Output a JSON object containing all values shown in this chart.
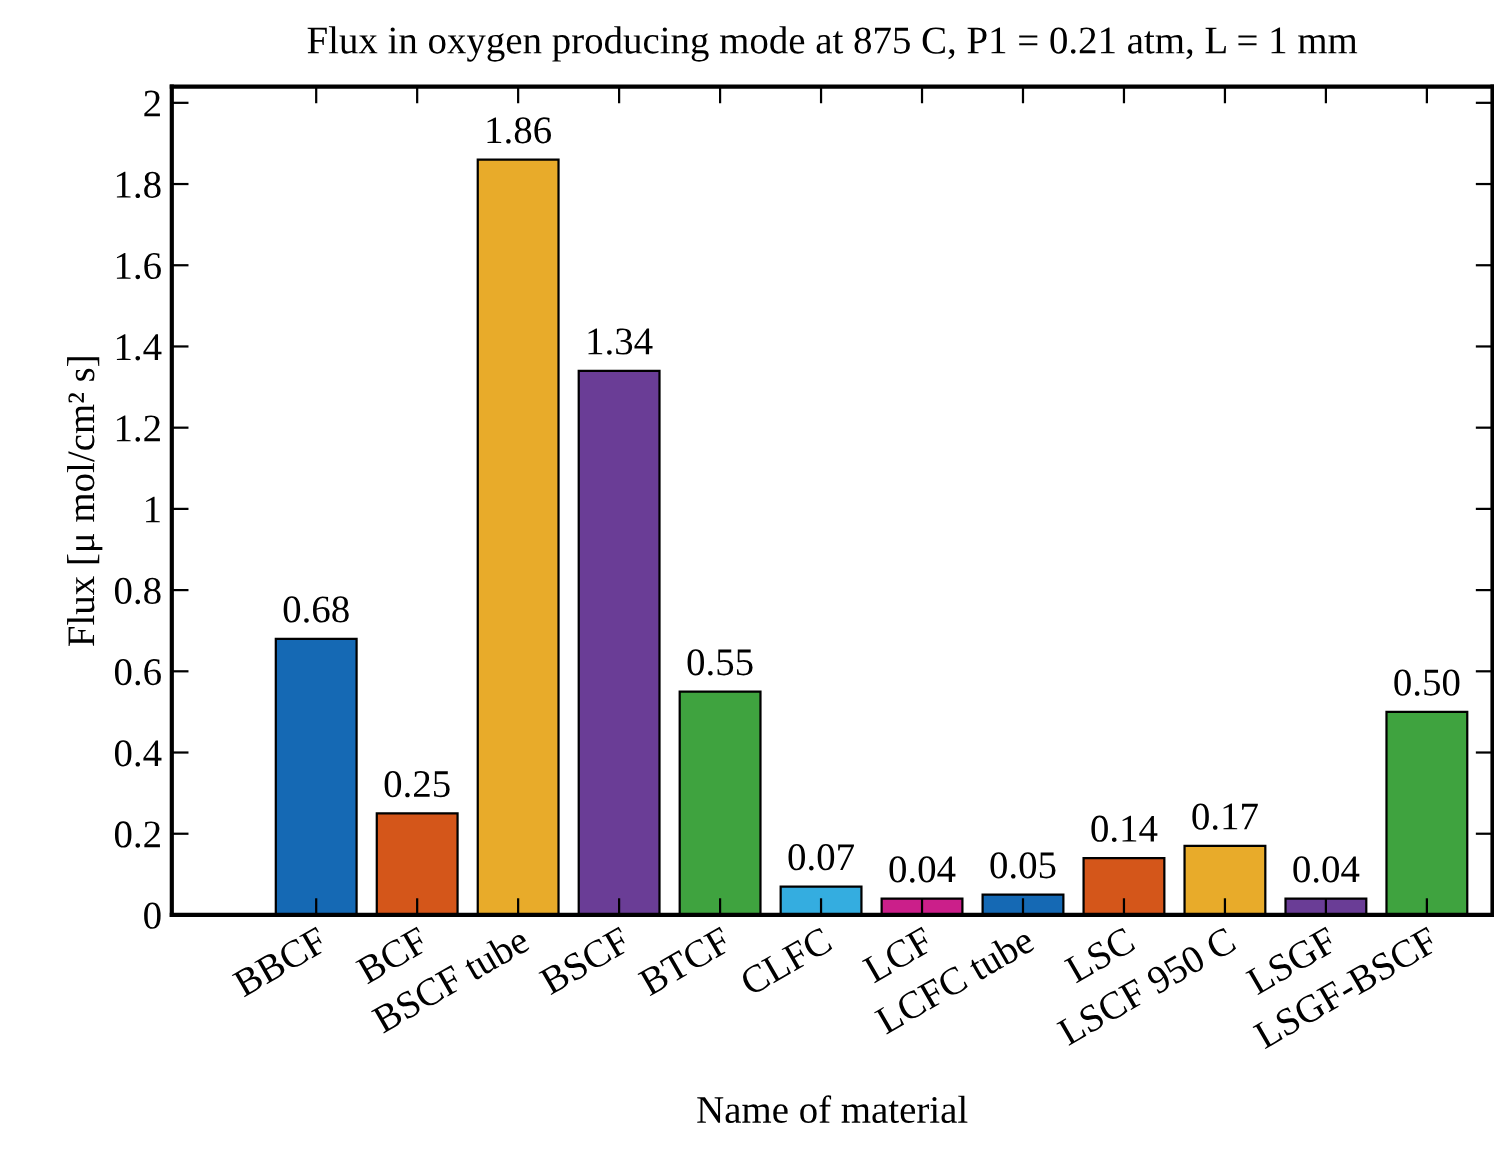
{
  "chart_data": {
    "type": "bar",
    "title": "Flux in oxygen producing mode at 875 C, P1 = 0.21 atm, L = 1 mm",
    "xlabel": "Name of material",
    "ylabel": "Flux [μ mol/cm² s]",
    "categories": [
      "BBCF",
      "BCF",
      "BSCF tube",
      "BSCF",
      "BTCF",
      "CLFC",
      "LCF",
      "LCFC tube",
      "LSC",
      "LSCF 950 C",
      "LSGF",
      "LSGF-BSCF"
    ],
    "values": [
      0.68,
      0.25,
      1.86,
      1.34,
      0.55,
      0.07,
      0.04,
      0.05,
      0.14,
      0.17,
      0.04,
      0.5
    ],
    "value_labels": [
      "0.68",
      "0.25",
      "1.86",
      "1.34",
      "0.55",
      "0.07",
      "0.04",
      "0.05",
      "0.14",
      "0.17",
      "0.04",
      "0.50"
    ],
    "colors": [
      "#1569b4",
      "#d4561a",
      "#e8ab2a",
      "#6a3d96",
      "#3fa33f",
      "#34ade0",
      "#cb1f8a",
      "#1569b4",
      "#d4561a",
      "#e8ab2a",
      "#6a3d96",
      "#3fa33f"
    ],
    "ylim": [
      0,
      2.04
    ],
    "yticks": [
      0,
      0.2,
      0.4,
      0.6,
      0.8,
      1,
      1.2,
      1.4,
      1.6,
      1.8,
      2
    ],
    "grid": false,
    "legend": false
  }
}
